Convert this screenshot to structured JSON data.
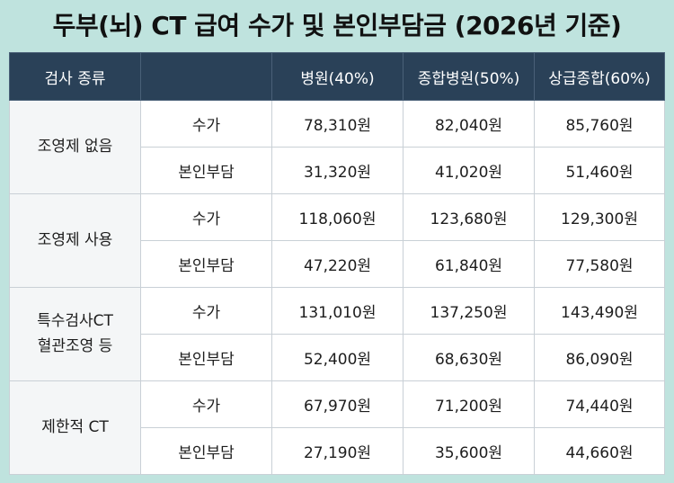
{
  "title": "두부(뇌) CT 급여 수가 및 본인부담금 (2026년 기준)",
  "header": {
    "category": "검사 종류",
    "blank": "",
    "col1": "병원(40%)",
    "col2": "종합병원(50%)",
    "col3": "상급종합(60%)"
  },
  "groups": [
    {
      "category_lines": [
        "조영제 없음"
      ],
      "rows": [
        {
          "label": "수가",
          "values": [
            "78,310원",
            "82,040원",
            "85,760원"
          ]
        },
        {
          "label": "본인부담",
          "values": [
            "31,320원",
            "41,020원",
            "51,460원"
          ]
        }
      ]
    },
    {
      "category_lines": [
        "조영제 사용"
      ],
      "rows": [
        {
          "label": "수가",
          "values": [
            "118,060원",
            "123,680원",
            "129,300원"
          ]
        },
        {
          "label": "본인부담",
          "values": [
            "47,220원",
            "61,840원",
            "77,580원"
          ]
        }
      ]
    },
    {
      "category_lines": [
        "특수검사CT",
        "혈관조영 등"
      ],
      "rows": [
        {
          "label": "수가",
          "values": [
            "131,010원",
            "137,250원",
            "143,490원"
          ]
        },
        {
          "label": "본인부담",
          "values": [
            "52,400원",
            "68,630원",
            "86,090원"
          ]
        }
      ]
    },
    {
      "category_lines": [
        "제한적 CT"
      ],
      "rows": [
        {
          "label": "수가",
          "values": [
            "67,970원",
            "71,200원",
            "74,440원"
          ]
        },
        {
          "label": "본인부담",
          "values": [
            "27,190원",
            "35,600원",
            "44,660원"
          ]
        }
      ]
    }
  ]
}
